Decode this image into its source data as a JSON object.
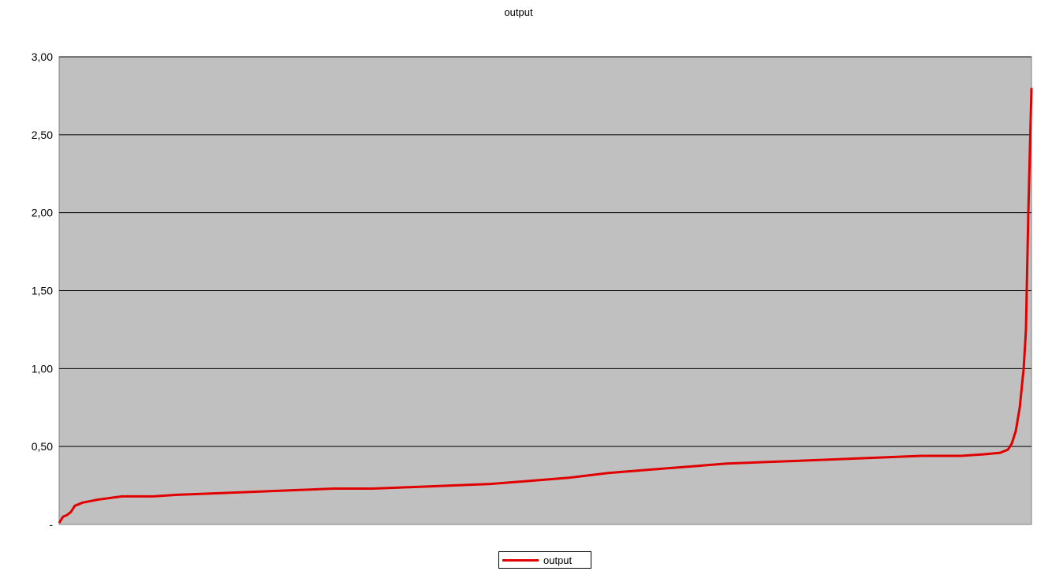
{
  "chart_data": {
    "type": "line",
    "title": "output",
    "xlabel": "",
    "ylabel": "",
    "ylim": [
      0,
      3.0
    ],
    "y_ticks": [
      0,
      0.5,
      1.0,
      1.5,
      2.0,
      2.5,
      3.0
    ],
    "y_tick_labels": [
      "-",
      "0,50",
      "1,00",
      "1,50",
      "2,00",
      "2,50",
      "3,00"
    ],
    "grid": true,
    "plot_background": "#c0c0c0",
    "gridline_color": "#000000",
    "legend_position": "bottom",
    "x": [
      0,
      5,
      10,
      15,
      20,
      30,
      50,
      80,
      120,
      150,
      200,
      250,
      300,
      350,
      400,
      450,
      500,
      550,
      600,
      650,
      700,
      750,
      800,
      850,
      900,
      950,
      1000,
      1050,
      1100,
      1150,
      1180,
      1200,
      1210,
      1215,
      1220,
      1225,
      1230,
      1233,
      1236,
      1240
    ],
    "series": [
      {
        "name": "output",
        "color": "#e00000",
        "values": [
          0.01,
          0.05,
          0.06,
          0.08,
          0.12,
          0.14,
          0.16,
          0.18,
          0.18,
          0.19,
          0.2,
          0.21,
          0.22,
          0.23,
          0.23,
          0.24,
          0.25,
          0.26,
          0.28,
          0.3,
          0.33,
          0.35,
          0.37,
          0.39,
          0.4,
          0.41,
          0.42,
          0.43,
          0.44,
          0.44,
          0.45,
          0.46,
          0.48,
          0.52,
          0.6,
          0.75,
          1.0,
          1.25,
          2.0,
          2.8
        ]
      }
    ]
  }
}
